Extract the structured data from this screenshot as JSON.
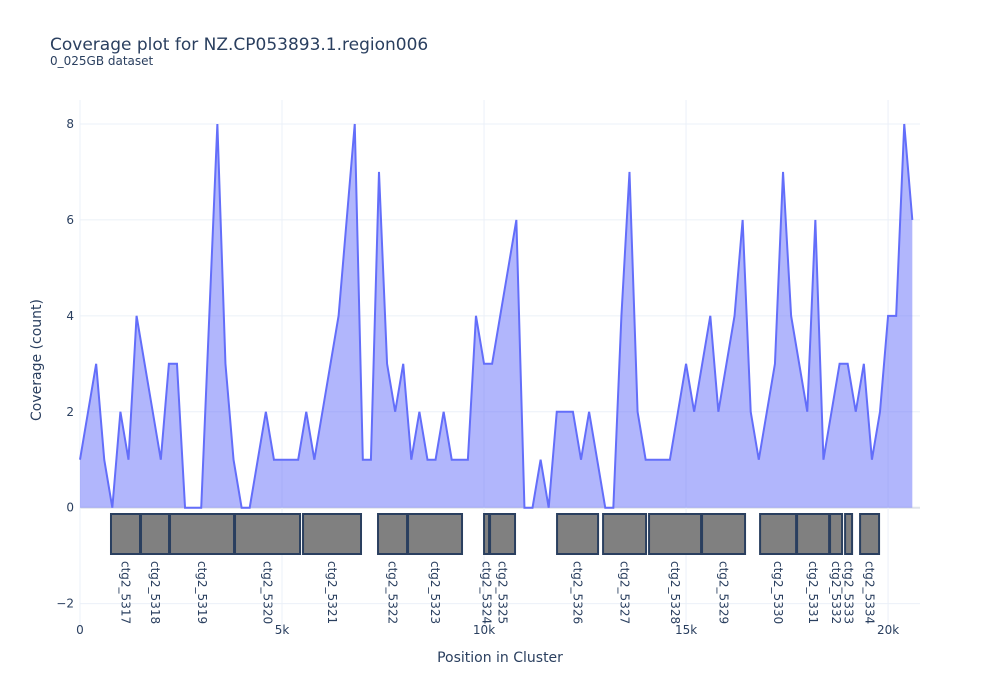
{
  "chart_data": {
    "type": "line",
    "title": "Coverage plot for NZ.CP053893.1.region006",
    "subtitle": "0_025GB dataset",
    "x_label": "Position in Cluster",
    "y_label": "Coverage (count)",
    "color": "#636efa",
    "fill": true,
    "grid": true,
    "x": [
      0,
      200,
      400,
      600,
      800,
      1000,
      1200,
      1400,
      1600,
      1800,
      2000,
      2200,
      2400,
      2600,
      2800,
      3000,
      3200,
      3400,
      3600,
      3800,
      4000,
      4200,
      4400,
      4600,
      4800,
      5000,
      5200,
      5400,
      5600,
      5800,
      6000,
      6200,
      6400,
      6600,
      6800,
      7000,
      7200,
      7400,
      7600,
      7800,
      8000,
      8200,
      8400,
      8600,
      8800,
      9000,
      9200,
      9400,
      9600,
      9800,
      10000,
      10200,
      10400,
      10600,
      10800,
      11000,
      11200,
      11400,
      11600,
      11800,
      12000,
      12200,
      12400,
      12600,
      12800,
      13000,
      13200,
      13400,
      13600,
      13800,
      14000,
      14200,
      14400,
      14600,
      14800,
      15000,
      15200,
      15400,
      15600,
      15800,
      16000,
      16200,
      16400,
      16600,
      16800,
      17000,
      17200,
      17400,
      17600,
      17800,
      18000,
      18200,
      18400,
      18600,
      18800,
      19000,
      19200,
      19400,
      19600,
      19800,
      20000,
      20200,
      20400,
      20600
    ],
    "values": [
      1,
      2,
      3,
      1,
      0,
      2,
      1,
      4,
      3,
      2,
      1,
      3,
      3,
      0,
      0,
      0,
      4,
      8,
      3,
      1,
      0,
      0,
      1,
      2,
      1,
      1,
      1,
      1,
      2,
      1,
      2,
      3,
      4,
      6,
      8,
      1,
      1,
      7,
      3,
      2,
      3,
      1,
      2,
      1,
      1,
      2,
      1,
      1,
      1,
      4,
      3,
      3,
      4,
      5,
      6,
      0,
      0,
      1,
      0,
      2,
      2,
      2,
      1,
      2,
      1,
      0,
      0,
      4,
      7,
      2,
      1,
      1,
      1,
      1,
      2,
      3,
      2,
      3,
      4,
      2,
      3,
      4,
      6,
      2,
      1,
      2,
      3,
      7,
      4,
      3,
      2,
      6,
      1,
      2,
      3,
      3,
      2,
      3,
      1,
      2,
      4,
      4,
      8,
      6
    ],
    "genes": [
      {
        "label": "ctg2_5317",
        "start": 767,
        "end": 1485
      },
      {
        "label": "ctg2_5318",
        "start": 1510,
        "end": 2203
      },
      {
        "label": "ctg2_5319",
        "start": 2228,
        "end": 3812
      },
      {
        "label": "ctg2_5320",
        "start": 3837,
        "end": 5446
      },
      {
        "label": "ctg2_5321",
        "start": 5520,
        "end": 6955
      },
      {
        "label": "ctg2_5322",
        "start": 7376,
        "end": 8094
      },
      {
        "label": "ctg2_5323",
        "start": 8119,
        "end": 9455
      },
      {
        "label": "ctg2_5324",
        "start": 10000,
        "end": 10124
      },
      {
        "label": "ctg2_5325",
        "start": 10149,
        "end": 10767
      },
      {
        "label": "ctg2_5326",
        "start": 11807,
        "end": 12822
      },
      {
        "label": "ctg2_5327",
        "start": 12946,
        "end": 14010
      },
      {
        "label": "ctg2_5328",
        "start": 14084,
        "end": 15371
      },
      {
        "label": "ctg2_5329",
        "start": 15396,
        "end": 16460
      },
      {
        "label": "ctg2_5330",
        "start": 16832,
        "end": 17723
      },
      {
        "label": "ctg2_5331",
        "start": 17748,
        "end": 18540
      },
      {
        "label": "ctg2_5332",
        "start": 18564,
        "end": 18861
      },
      {
        "label": "ctg2_5333",
        "start": 18936,
        "end": 19109
      },
      {
        "label": "ctg2_5334",
        "start": 19307,
        "end": 19777
      }
    ],
    "xlim": [
      0,
      20790
    ],
    "ylim": [
      -2.55,
      8.5
    ],
    "xticks": [
      0,
      {
        "value": 5000,
        "label": "5k"
      },
      {
        "value": 10000,
        "label": "10k"
      },
      {
        "value": 15000,
        "label": "15k"
      },
      {
        "value": 20000,
        "label": "20k"
      }
    ],
    "yticks": [
      {
        "value": -2,
        "label": "−2"
      },
      0,
      2,
      4,
      6,
      8
    ]
  }
}
